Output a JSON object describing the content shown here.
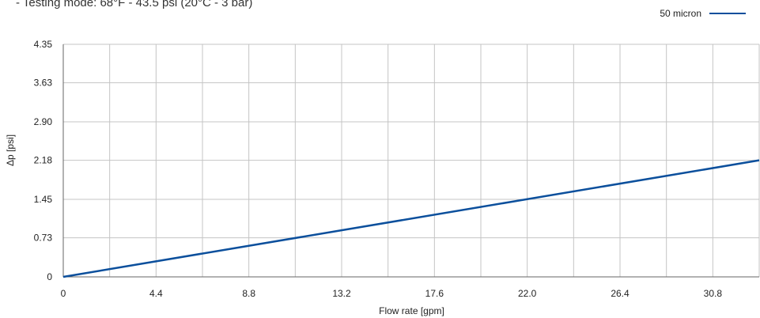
{
  "subtitle": "- Testing mode: 68°F - 43.5 psi (20°C - 3 bar)",
  "legend": {
    "label": "50 micron"
  },
  "colors": {
    "line": "#0b4f9c",
    "grid": "#c4c4c4",
    "axis": "#666666"
  },
  "chart_data": {
    "type": "line",
    "xlabel": "Flow rate [gpm]",
    "ylabel": "Δp [psi]",
    "x_ticks": [
      "0",
      "4.4",
      "8.8",
      "13.2",
      "17.6",
      "22.0",
      "26.4",
      "30.8"
    ],
    "y_ticks": [
      "0",
      "0.73",
      "1.45",
      "2.18",
      "2.90",
      "3.63",
      "4.35"
    ],
    "xlim": [
      0,
      33
    ],
    "ylim": [
      0,
      4.35
    ],
    "grid": true,
    "legend_position": "top-right",
    "series": [
      {
        "name": "50 micron",
        "x": [
          0,
          33
        ],
        "y": [
          0,
          2.18
        ]
      }
    ]
  }
}
